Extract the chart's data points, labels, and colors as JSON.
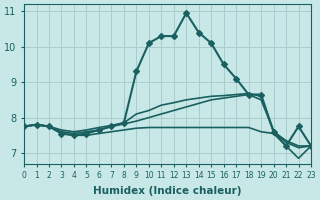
{
  "xlabel": "Humidex (Indice chaleur)",
  "xlim": [
    0,
    23
  ],
  "ylim": [
    6.7,
    11.2
  ],
  "yticks": [
    7,
    8,
    9,
    10,
    11
  ],
  "xticks": [
    0,
    1,
    2,
    3,
    4,
    5,
    6,
    7,
    8,
    9,
    10,
    11,
    12,
    13,
    14,
    15,
    16,
    17,
    18,
    19,
    20,
    21,
    22,
    23
  ],
  "bg_color": "#c8e8e8",
  "grid_color": "#aacccc",
  "line_color": "#1a6060",
  "series": [
    {
      "x": [
        0,
        1,
        2,
        3,
        4,
        5,
        6,
        7,
        8,
        9,
        10,
        11,
        12,
        13,
        14,
        15,
        16,
        17,
        18,
        19,
        20,
        21,
        22,
        23
      ],
      "y": [
        7.75,
        7.8,
        7.75,
        7.55,
        7.5,
        7.55,
        7.65,
        7.75,
        7.85,
        9.3,
        10.1,
        10.3,
        10.3,
        10.95,
        10.4,
        10.1,
        9.5,
        9.1,
        8.65,
        8.65,
        7.6,
        7.2,
        7.75,
        7.2
      ],
      "marker": "D",
      "markersize": 3,
      "linewidth": 1.5
    },
    {
      "x": [
        0,
        1,
        2,
        3,
        4,
        5,
        6,
        7,
        8,
        9,
        10,
        11,
        12,
        13,
        14,
        15,
        16,
        17,
        18,
        19,
        20,
        21,
        22,
        23
      ],
      "y": [
        7.75,
        7.8,
        7.75,
        7.65,
        7.6,
        7.65,
        7.72,
        7.78,
        7.85,
        8.1,
        8.2,
        8.35,
        8.42,
        8.5,
        8.55,
        8.6,
        8.62,
        8.65,
        8.68,
        8.6,
        7.6,
        7.35,
        7.2,
        7.2
      ],
      "marker": null,
      "markersize": 0,
      "linewidth": 1.2
    },
    {
      "x": [
        0,
        1,
        2,
        3,
        4,
        5,
        6,
        7,
        8,
        9,
        10,
        11,
        12,
        13,
        14,
        15,
        16,
        17,
        18,
        19,
        20,
        21,
        22,
        23
      ],
      "y": [
        7.75,
        7.8,
        7.75,
        7.55,
        7.5,
        7.5,
        7.55,
        7.6,
        7.65,
        7.7,
        7.72,
        7.72,
        7.72,
        7.72,
        7.72,
        7.72,
        7.72,
        7.72,
        7.72,
        7.6,
        7.55,
        7.2,
        6.85,
        7.2
      ],
      "marker": null,
      "markersize": 0,
      "linewidth": 1.2
    },
    {
      "x": [
        0,
        1,
        2,
        3,
        4,
        5,
        6,
        7,
        8,
        9,
        10,
        11,
        12,
        13,
        14,
        15,
        16,
        17,
        18,
        19,
        20,
        21,
        22,
        23
      ],
      "y": [
        7.75,
        7.8,
        7.75,
        7.6,
        7.55,
        7.6,
        7.65,
        7.75,
        7.82,
        7.9,
        8.0,
        8.1,
        8.2,
        8.3,
        8.4,
        8.5,
        8.55,
        8.6,
        8.65,
        8.5,
        7.62,
        7.3,
        7.15,
        7.2
      ],
      "marker": null,
      "markersize": 0,
      "linewidth": 1.2
    }
  ]
}
